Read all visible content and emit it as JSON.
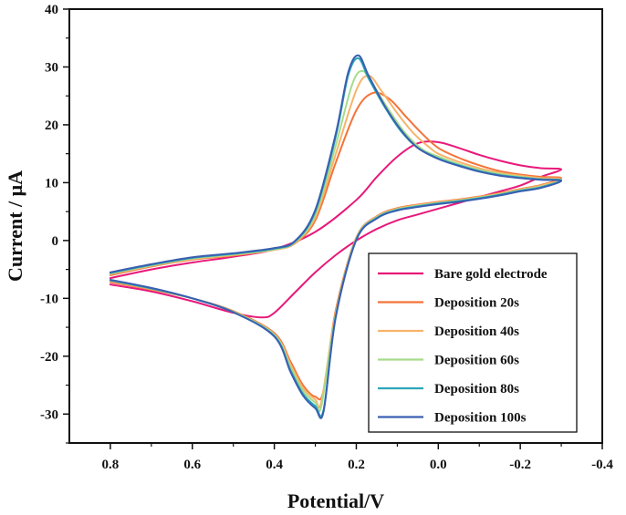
{
  "chart_data": {
    "type": "line",
    "xlabel": "Potential/V",
    "ylabel": "Current / μA",
    "xlim": [
      0.9,
      -0.4
    ],
    "ylim": [
      -35,
      40
    ],
    "x_reversed": true,
    "x_ticks": [
      0.8,
      0.6,
      0.4,
      0.2,
      0.0,
      -0.2,
      -0.4
    ],
    "x_tick_labels": [
      "0.8",
      "0.6",
      "0.4",
      "0.2",
      "0.0",
      "-0.2",
      "-0.4"
    ],
    "y_ticks": [
      -30,
      -20,
      -10,
      0,
      10,
      20,
      30,
      40
    ],
    "y_tick_labels": [
      "-30",
      "-20",
      "-10",
      "0",
      "10",
      "20",
      "30",
      "40"
    ],
    "grid": false,
    "legend_position": "bottom-right",
    "series": [
      {
        "name": "Bare gold electrode",
        "color": "#e8187a",
        "x": [
          0.8,
          0.7,
          0.6,
          0.5,
          0.4,
          0.3,
          0.2,
          0.15,
          0.1,
          0.05,
          0.0,
          -0.05,
          -0.1,
          -0.15,
          -0.2,
          -0.25,
          -0.3,
          -0.25,
          -0.2,
          -0.15,
          -0.1,
          -0.05,
          0.0,
          0.05,
          0.1,
          0.15,
          0.2,
          0.25,
          0.3,
          0.35,
          0.4,
          0.43,
          0.5,
          0.6,
          0.7,
          0.8
        ],
        "y": [
          -6.5,
          -5.0,
          -3.8,
          -2.8,
          -1.5,
          1.5,
          7.0,
          11.0,
          14.5,
          16.8,
          17.0,
          16.0,
          14.8,
          13.8,
          13.0,
          12.5,
          12.3,
          11.0,
          9.5,
          8.5,
          7.5,
          6.5,
          5.5,
          4.5,
          3.5,
          2.0,
          0.0,
          -2.5,
          -5.5,
          -9.0,
          -12.5,
          -13.3,
          -12.5,
          -10.5,
          -8.8,
          -7.6
        ]
      },
      {
        "name": "Deposition 20s",
        "color": "#f4733a",
        "x": [
          0.8,
          0.7,
          0.6,
          0.5,
          0.4,
          0.35,
          0.3,
          0.25,
          0.2,
          0.16,
          0.12,
          0.08,
          0.04,
          0.0,
          -0.05,
          -0.1,
          -0.15,
          -0.2,
          -0.25,
          -0.3,
          -0.25,
          -0.2,
          -0.15,
          -0.1,
          -0.05,
          0.0,
          0.05,
          0.1,
          0.15,
          0.2,
          0.25,
          0.28,
          0.3,
          0.33,
          0.36,
          0.4,
          0.5,
          0.6,
          0.7,
          0.8
        ],
        "y": [
          -6.0,
          -4.5,
          -3.3,
          -2.6,
          -1.6,
          -0.5,
          3.5,
          13.5,
          22.5,
          25.5,
          24.5,
          21.5,
          18.5,
          16.0,
          14.3,
          13.0,
          12.0,
          11.4,
          11.0,
          10.8,
          9.6,
          8.9,
          8.2,
          7.6,
          7.1,
          6.7,
          6.2,
          5.6,
          4.2,
          0.5,
          -12.0,
          -26.0,
          -27.0,
          -25.0,
          -21.0,
          -16.0,
          -12.2,
          -10.0,
          -8.5,
          -7.2
        ]
      },
      {
        "name": "Deposition 40s",
        "color": "#f7b46a",
        "x": [
          0.8,
          0.7,
          0.6,
          0.5,
          0.4,
          0.35,
          0.3,
          0.25,
          0.2,
          0.17,
          0.14,
          0.1,
          0.06,
          0.02,
          0.0,
          -0.05,
          -0.1,
          -0.15,
          -0.2,
          -0.25,
          -0.3,
          -0.25,
          -0.2,
          -0.15,
          -0.1,
          -0.05,
          0.0,
          0.05,
          0.1,
          0.15,
          0.2,
          0.25,
          0.285,
          0.3,
          0.33,
          0.36,
          0.4,
          0.5,
          0.6,
          0.7,
          0.8
        ],
        "y": [
          -5.8,
          -4.4,
          -3.2,
          -2.5,
          -1.6,
          -0.4,
          4.0,
          15.0,
          26.0,
          28.5,
          26.0,
          22.0,
          18.5,
          16.0,
          15.0,
          13.6,
          12.5,
          11.7,
          11.2,
          10.8,
          10.6,
          9.5,
          8.8,
          8.1,
          7.5,
          7.0,
          6.6,
          6.1,
          5.5,
          4.1,
          0.4,
          -12.5,
          -27.8,
          -27.5,
          -25.5,
          -21.5,
          -16.2,
          -12.3,
          -10.0,
          -8.4,
          -7.0
        ]
      },
      {
        "name": "Deposition 60s",
        "color": "#a6dc8c",
        "x": [
          0.8,
          0.7,
          0.6,
          0.5,
          0.4,
          0.35,
          0.3,
          0.25,
          0.21,
          0.185,
          0.16,
          0.12,
          0.08,
          0.04,
          0.0,
          -0.05,
          -0.1,
          -0.15,
          -0.2,
          -0.25,
          -0.3,
          -0.25,
          -0.2,
          -0.15,
          -0.1,
          -0.05,
          0.0,
          0.05,
          0.1,
          0.15,
          0.2,
          0.25,
          0.285,
          0.3,
          0.33,
          0.36,
          0.4,
          0.5,
          0.6,
          0.7,
          0.8
        ],
        "y": [
          -5.7,
          -4.3,
          -3.1,
          -2.4,
          -1.5,
          -0.3,
          4.5,
          16.5,
          27.0,
          29.3,
          27.0,
          22.5,
          18.5,
          15.8,
          14.5,
          13.2,
          12.2,
          11.5,
          11.0,
          10.6,
          10.4,
          9.3,
          8.7,
          8.0,
          7.4,
          6.9,
          6.5,
          6.0,
          5.4,
          4.0,
          0.3,
          -12.8,
          -28.5,
          -28.0,
          -26.0,
          -22.0,
          -16.3,
          -12.3,
          -10.0,
          -8.3,
          -6.9
        ]
      },
      {
        "name": "Deposition 80s",
        "color": "#2ba6b8",
        "x": [
          0.8,
          0.7,
          0.6,
          0.5,
          0.4,
          0.35,
          0.3,
          0.25,
          0.22,
          0.195,
          0.17,
          0.13,
          0.09,
          0.05,
          0.0,
          -0.05,
          -0.1,
          -0.15,
          -0.2,
          -0.25,
          -0.3,
          -0.25,
          -0.2,
          -0.15,
          -0.1,
          -0.05,
          0.0,
          0.05,
          0.1,
          0.15,
          0.2,
          0.25,
          0.28,
          0.3,
          0.33,
          0.36,
          0.4,
          0.5,
          0.6,
          0.7,
          0.8
        ],
        "y": [
          -5.6,
          -4.2,
          -3.0,
          -2.3,
          -1.4,
          -0.2,
          5.0,
          18.0,
          28.5,
          31.5,
          28.0,
          23.0,
          18.8,
          16.0,
          14.2,
          13.0,
          12.0,
          11.3,
          10.9,
          10.6,
          10.4,
          9.2,
          8.6,
          7.9,
          7.3,
          6.8,
          6.4,
          5.9,
          5.3,
          3.9,
          0.2,
          -13.0,
          -29.3,
          -28.6,
          -26.5,
          -22.5,
          -16.5,
          -12.4,
          -10.0,
          -8.3,
          -6.9
        ]
      },
      {
        "name": "Deposition 100s",
        "color": "#3a5fb0",
        "x": [
          0.8,
          0.7,
          0.6,
          0.5,
          0.4,
          0.35,
          0.3,
          0.25,
          0.22,
          0.195,
          0.17,
          0.13,
          0.09,
          0.05,
          0.0,
          -0.05,
          -0.1,
          -0.15,
          -0.2,
          -0.25,
          -0.3,
          -0.25,
          -0.2,
          -0.15,
          -0.1,
          -0.05,
          0.0,
          0.05,
          0.1,
          0.15,
          0.2,
          0.25,
          0.28,
          0.3,
          0.33,
          0.36,
          0.4,
          0.5,
          0.6,
          0.7,
          0.8
        ],
        "y": [
          -5.5,
          -4.1,
          -2.9,
          -2.2,
          -1.3,
          -0.1,
          5.3,
          18.5,
          29.0,
          32.0,
          28.5,
          23.2,
          19.0,
          16.0,
          14.1,
          12.9,
          11.9,
          11.2,
          10.8,
          10.5,
          10.3,
          9.1,
          8.5,
          7.8,
          7.2,
          6.7,
          6.3,
          5.8,
          5.2,
          3.8,
          0.1,
          -13.2,
          -29.6,
          -29.0,
          -26.8,
          -22.8,
          -16.6,
          -12.4,
          -10.0,
          -8.2,
          -6.8
        ]
      }
    ]
  }
}
